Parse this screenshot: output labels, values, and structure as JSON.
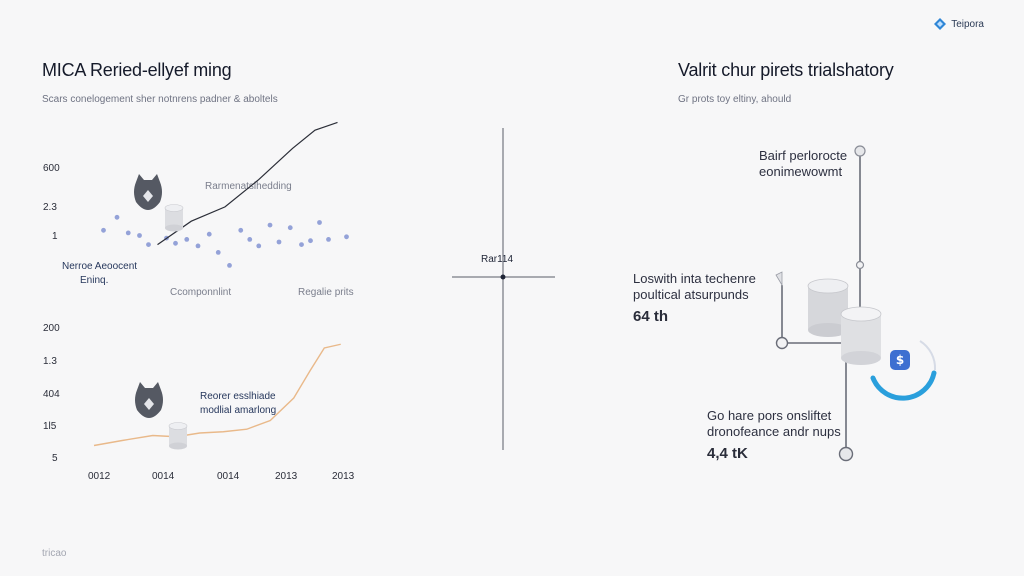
{
  "brand": {
    "name": "Teipora",
    "icon": "brand-logo-icon",
    "color": "#2f86d6"
  },
  "left": {
    "title": "MICA Reried-ellyef ming",
    "subtitle": "Scars conelogement sher notnrens padner & aboltels",
    "footer": "tricao"
  },
  "right": {
    "title": "Valrit chur pirets trialshatory",
    "subtitle": "Gr prots toy eltiny, ahould",
    "label1": [
      "Bairf perlorocte",
      "eonimewowmt"
    ],
    "label2": [
      "Loswith inta techenre",
      "poultical atsurpunds"
    ],
    "value2": "64 th",
    "label3": [
      "Go hare pors onsliftet",
      "dronofeance andr nups"
    ],
    "value3": "4,4 tK",
    "accent": "#2a9fdc"
  },
  "center": {
    "crosshair_label": "Rar114"
  },
  "chart_data": [
    {
      "type": "scatter",
      "title": "",
      "yticks": [
        "600",
        "2.3",
        "1"
      ],
      "line_label": "Rarmenatslhedding",
      "annotation": [
        "Nerroe Aeoocent",
        "Eninq."
      ],
      "notes": [
        "Ccomponnlint",
        "Regalie prits"
      ],
      "icon": "cat-robot-icon",
      "scatter": [
        [
          0.6,
          0.45
        ],
        [
          1.2,
          0.95
        ],
        [
          1.7,
          0.35
        ],
        [
          2.2,
          0.25
        ],
        [
          2.6,
          -0.1
        ],
        [
          3.4,
          0.15
        ],
        [
          3.8,
          -0.05
        ],
        [
          4.3,
          0.1
        ],
        [
          4.8,
          -0.15
        ],
        [
          5.3,
          0.3
        ],
        [
          5.7,
          -0.4
        ],
        [
          6.2,
          -0.9
        ],
        [
          6.7,
          0.45
        ],
        [
          7.1,
          0.1
        ],
        [
          7.5,
          -0.15
        ],
        [
          8.0,
          0.65
        ],
        [
          8.4,
          0.0
        ],
        [
          8.9,
          0.55
        ],
        [
          9.4,
          -0.1
        ],
        [
          9.8,
          0.05
        ],
        [
          10.2,
          0.75
        ],
        [
          10.6,
          0.1
        ],
        [
          11.4,
          0.2
        ]
      ],
      "line": [
        [
          3.0,
          -0.1
        ],
        [
          4.5,
          0.8
        ],
        [
          6.0,
          1.35
        ],
        [
          7.5,
          2.4
        ],
        [
          9.0,
          3.6
        ],
        [
          10.0,
          4.3
        ],
        [
          11.0,
          4.6
        ]
      ]
    },
    {
      "type": "line",
      "title": "",
      "yticks": [
        "200",
        "1.3",
        "404",
        "1l5",
        "5"
      ],
      "xticks": [
        "0012",
        "0014",
        "0014",
        "2013",
        "2013"
      ],
      "annotation": [
        "Reorer esslhiade",
        "modlial amarlong"
      ],
      "icon": "cat-robot-icon",
      "line_color": "#e9b98a",
      "series": [
        [
          0,
          0.3
        ],
        [
          1.2,
          0.5
        ],
        [
          2.5,
          0.7
        ],
        [
          3.5,
          0.65
        ],
        [
          4.5,
          0.8
        ],
        [
          5.5,
          0.85
        ],
        [
          6.5,
          0.95
        ],
        [
          7.5,
          1.3
        ],
        [
          8.5,
          2.2
        ],
        [
          9.2,
          3.3
        ],
        [
          9.8,
          4.2
        ],
        [
          10.5,
          4.35
        ]
      ]
    }
  ]
}
